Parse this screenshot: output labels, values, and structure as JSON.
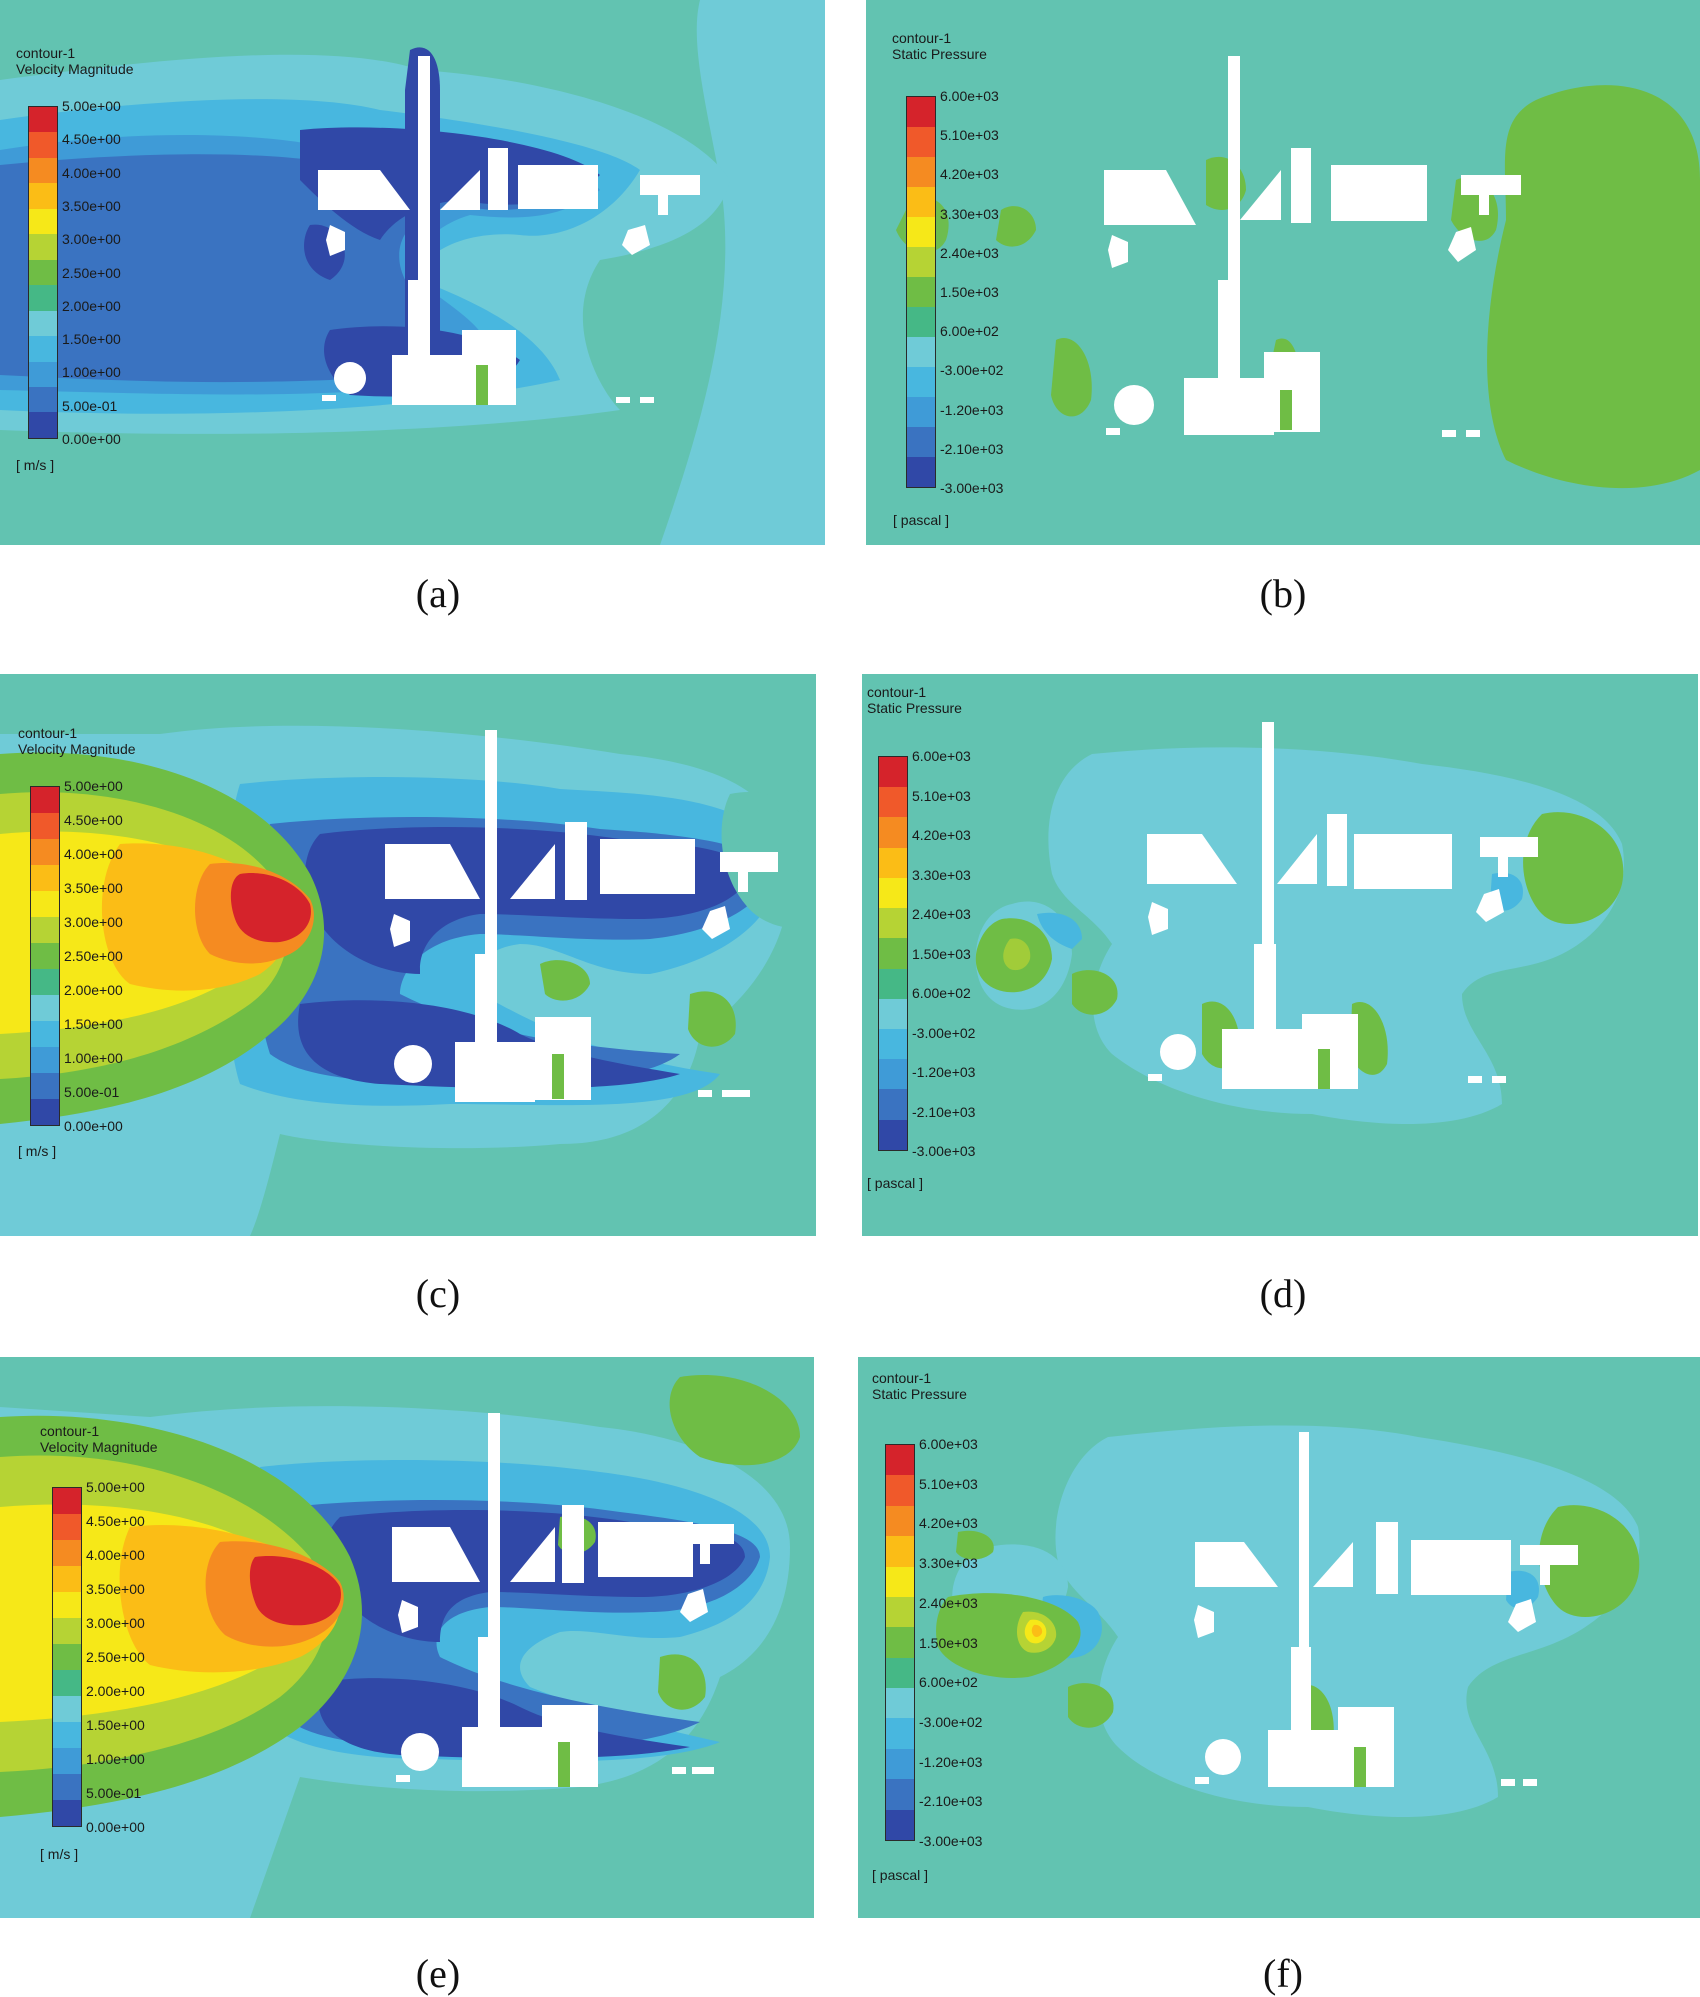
{
  "colorbar": [
    "#d5232b",
    "#f0592a",
    "#f58b21",
    "#fbbd16",
    "#f6e818",
    "#b6d334",
    "#6fbd45",
    "#45b886",
    "#6fcbd7",
    "#48b7df",
    "#3f9bd7",
    "#3a73c1",
    "#3048a7"
  ],
  "background_color": "#62c3b1",
  "panels": [
    {
      "id": "a",
      "caption": "(a)",
      "title1": "contour-1",
      "title2": "Velocity Magnitude",
      "unit": "[ m/s ]",
      "ticks": [
        "5.00e+00",
        "4.50e+00",
        "4.00e+00",
        "3.50e+00",
        "3.00e+00",
        "2.50e+00",
        "2.00e+00",
        "1.50e+00",
        "1.00e+00",
        "5.00e-01",
        "0.00e+00"
      ]
    },
    {
      "id": "b",
      "caption": "(b)",
      "title1": "contour-1",
      "title2": "Static Pressure",
      "unit": "[ pascal ]",
      "ticks": [
        "6.00e+03",
        "5.10e+03",
        "4.20e+03",
        "3.30e+03",
        "2.40e+03",
        "1.50e+03",
        "6.00e+02",
        "-3.00e+02",
        "-1.20e+03",
        "-2.10e+03",
        "-3.00e+03"
      ]
    },
    {
      "id": "c",
      "caption": "(c)",
      "title1": "contour-1",
      "title2": "Velocity Magnitude",
      "unit": "[ m/s ]",
      "ticks": [
        "5.00e+00",
        "4.50e+00",
        "4.00e+00",
        "3.50e+00",
        "3.00e+00",
        "2.50e+00",
        "2.00e+00",
        "1.50e+00",
        "1.00e+00",
        "5.00e-01",
        "0.00e+00"
      ]
    },
    {
      "id": "d",
      "caption": "(d)",
      "title1": "contour-1",
      "title2": "Static Pressure",
      "unit": "[ pascal ]",
      "ticks": [
        "6.00e+03",
        "5.10e+03",
        "4.20e+03",
        "3.30e+03",
        "2.40e+03",
        "1.50e+03",
        "6.00e+02",
        "-3.00e+02",
        "-1.20e+03",
        "-2.10e+03",
        "-3.00e+03"
      ]
    },
    {
      "id": "e",
      "caption": "(e)",
      "title1": "contour-1",
      "title2": "Velocity Magnitude",
      "unit": "[ m/s ]",
      "ticks": [
        "5.00e+00",
        "4.50e+00",
        "4.00e+00",
        "3.50e+00",
        "3.00e+00",
        "2.50e+00",
        "2.00e+00",
        "1.50e+00",
        "1.00e+00",
        "5.00e-01",
        "0.00e+00"
      ]
    },
    {
      "id": "f",
      "caption": "(f)",
      "title1": "contour-1",
      "title2": "Static Pressure",
      "unit": "[ pascal ]",
      "ticks": [
        "6.00e+03",
        "5.10e+03",
        "4.20e+03",
        "3.30e+03",
        "2.40e+03",
        "1.50e+03",
        "6.00e+02",
        "-3.00e+02",
        "-1.20e+03",
        "-2.10e+03",
        "-3.00e+03"
      ]
    }
  ]
}
